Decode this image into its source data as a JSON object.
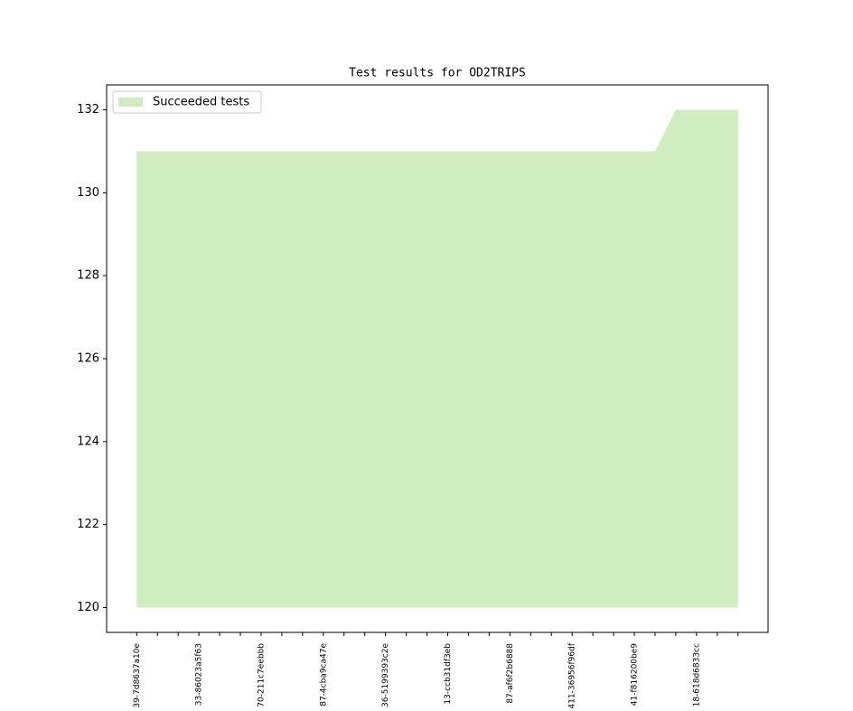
{
  "chart_data": {
    "type": "area",
    "title": "Test results for OD2TRIPS",
    "categories": [
      "39-7d8637a10e",
      null,
      null,
      "33-86023a5f63",
      null,
      null,
      "70-211c7eebbb",
      null,
      null,
      "87-4cba9ca47e",
      null,
      null,
      "36-5199393c2e",
      null,
      null,
      "13-ccb31df3eb",
      null,
      null,
      "87-af6f2b6888",
      null,
      null,
      "411-36956f96df",
      null,
      null,
      "41-f816200be9",
      null,
      null,
      "18-618d6833cc",
      null,
      null
    ],
    "series": [
      {
        "name": "Succeeded tests",
        "color": "#cfedbf",
        "values": [
          131,
          131,
          131,
          131,
          131,
          131,
          131,
          131,
          131,
          131,
          131,
          131,
          131,
          131,
          131,
          131,
          131,
          131,
          131,
          131,
          131,
          131,
          131,
          131,
          131,
          131,
          132,
          132,
          132,
          132
        ]
      }
    ],
    "baseline": 120,
    "ylim": [
      119.4,
      132.6
    ],
    "yticks": [
      120,
      122,
      124,
      126,
      128,
      130,
      132
    ],
    "legend": "upper left"
  }
}
